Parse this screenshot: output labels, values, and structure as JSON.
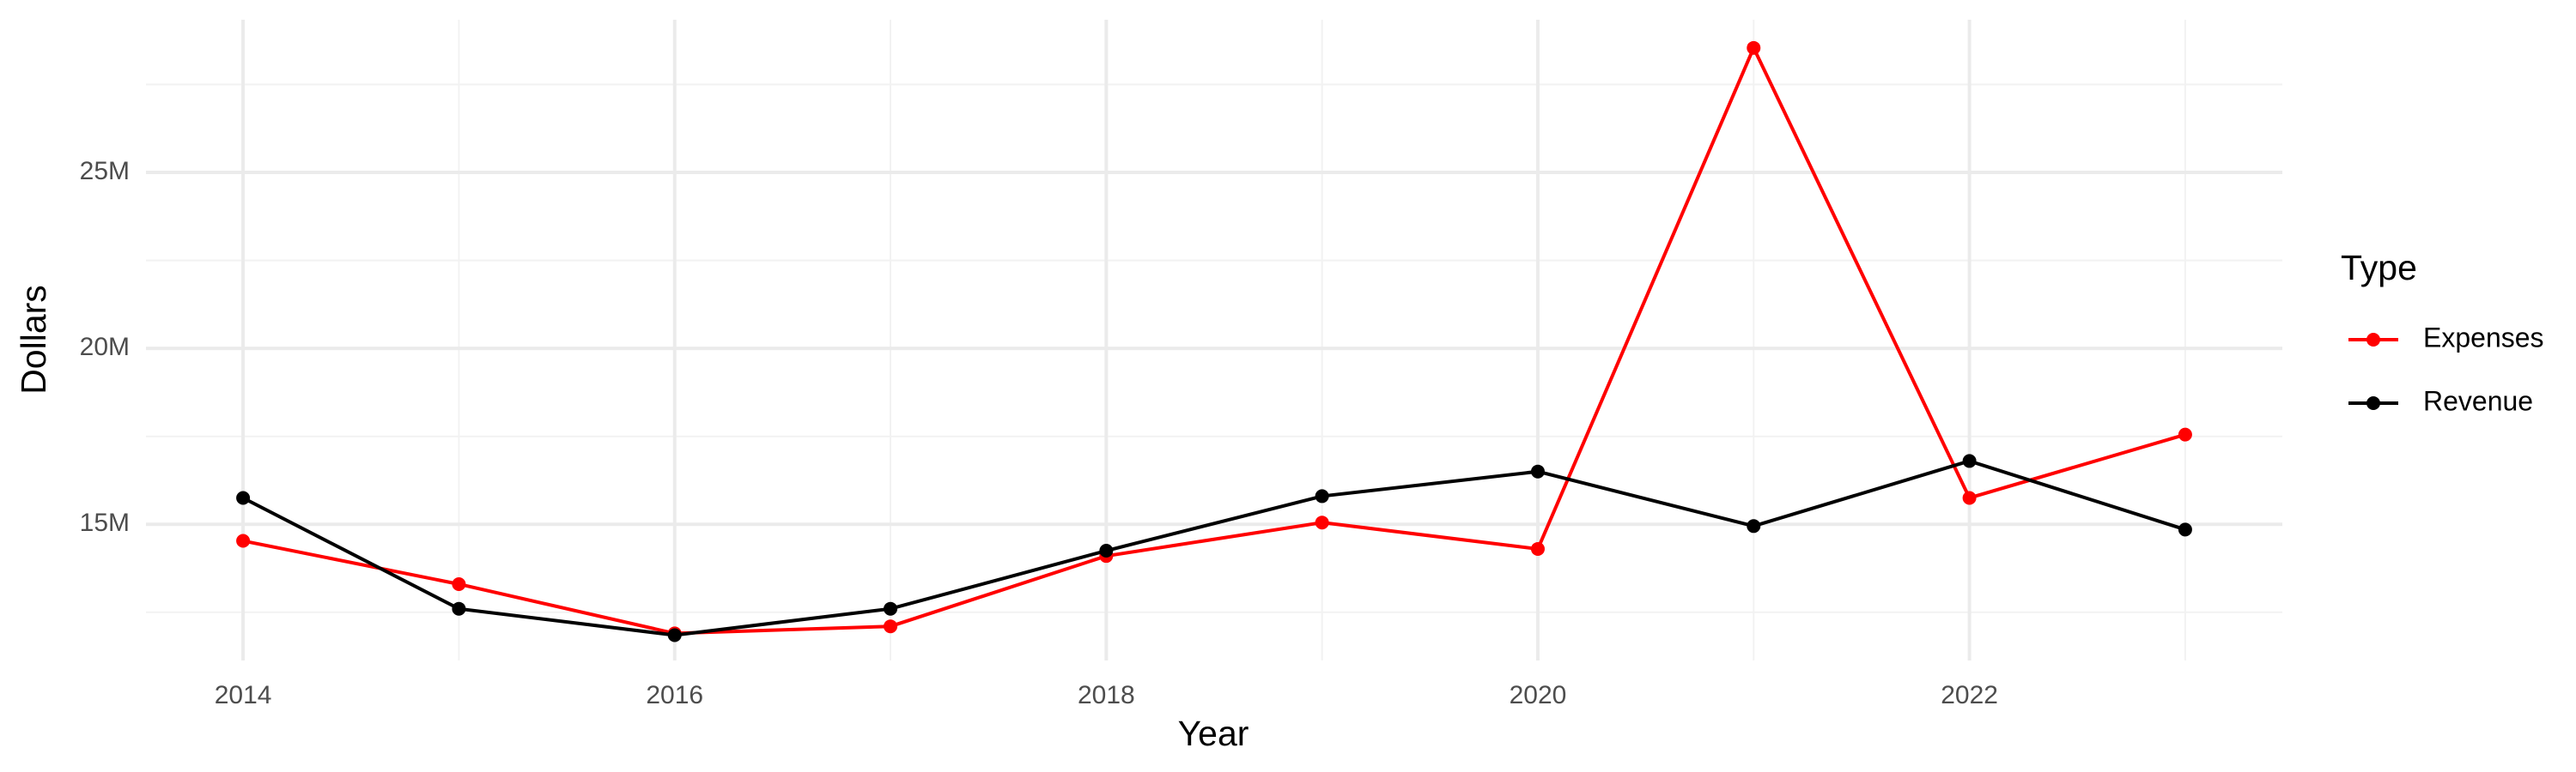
{
  "chart_data": {
    "type": "line",
    "x_label": "Year",
    "y_label": "Dollars",
    "legend_title": "Type",
    "legend_position": "right",
    "x": [
      2014,
      2015,
      2016,
      2017,
      2018,
      2019,
      2020,
      2021,
      2022,
      2023
    ],
    "series": [
      {
        "name": "Expenses",
        "color": "#ff0000",
        "values": [
          14530000,
          13300000,
          11900000,
          12100000,
          14100000,
          15050000,
          14300000,
          28540000,
          15750000,
          17550000
        ]
      },
      {
        "name": "Revenue",
        "color": "#000000",
        "values": [
          15750000,
          12600000,
          11850000,
          12600000,
          14250000,
          15800000,
          16500000,
          14950000,
          16800000,
          14850000
        ]
      }
    ],
    "xlim": [
      2013.55,
      2023.45
    ],
    "xticks": [
      2014,
      2016,
      2018,
      2020,
      2022
    ],
    "x_minor_ticks": [
      2015,
      2017,
      2019,
      2021,
      2023
    ],
    "ylim": [
      11130000,
      29340000
    ],
    "yticks": [
      {
        "value": 15000000,
        "label": "15M"
      },
      {
        "value": 20000000,
        "label": "20M"
      },
      {
        "value": 25000000,
        "label": "25M"
      }
    ],
    "y_minor_ticks": [
      12500000,
      17500000,
      22500000,
      27500000
    ],
    "grid": true
  }
}
